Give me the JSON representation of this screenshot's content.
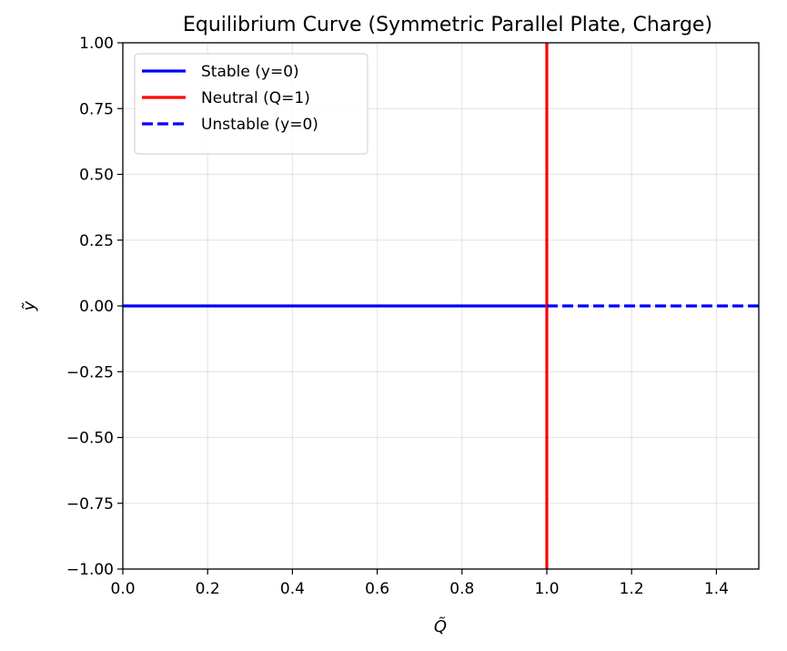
{
  "chart_data": {
    "type": "line",
    "title": "Equilibrium Curve (Symmetric Parallel Plate, Charge)",
    "xlabel": "Q̃",
    "ylabel": "ỹ",
    "xlim": [
      0.0,
      1.5
    ],
    "ylim": [
      -1.0,
      1.0
    ],
    "xticks": [
      0.0,
      0.2,
      0.4,
      0.6,
      0.8,
      1.0,
      1.2,
      1.4
    ],
    "xtick_labels": [
      "0.0",
      "0.2",
      "0.4",
      "0.6",
      "0.8",
      "1.0",
      "1.2",
      "1.4"
    ],
    "yticks": [
      1.0,
      0.75,
      0.5,
      0.25,
      0.0,
      -0.25,
      -0.5,
      -0.75,
      -1.0
    ],
    "ytick_labels": [
      "1.00",
      "0.75",
      "0.50",
      "0.25",
      "0.00",
      "−0.25",
      "−0.50",
      "−0.75",
      "−1.00"
    ],
    "grid": true,
    "legend_position": "upper-left",
    "series": [
      {
        "name": "Stable (y=0)",
        "color": "#0000ff",
        "style": "solid",
        "x": [
          0.0,
          1.0
        ],
        "y": [
          0.0,
          0.0
        ]
      },
      {
        "name": "Neutral (Q=1)",
        "color": "#ff0000",
        "style": "solid",
        "x": [
          1.0,
          1.0
        ],
        "y": [
          -1.0,
          1.0
        ]
      },
      {
        "name": "Unstable (y=0)",
        "color": "#0000ff",
        "style": "dashed",
        "x": [
          1.0,
          1.5
        ],
        "y": [
          0.0,
          0.0
        ]
      }
    ]
  }
}
